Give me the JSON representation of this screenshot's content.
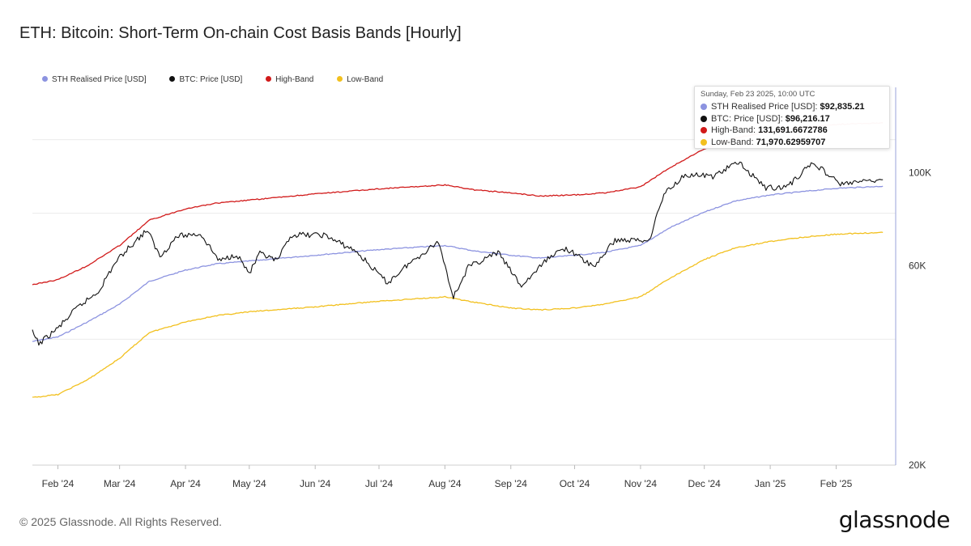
{
  "chart_data": {
    "type": "line",
    "title": "ETH: Bitcoin: Short-Term On-chain Cost Basis Bands [Hourly]",
    "y_scale": "log",
    "ylim": [
      20000,
      160000
    ],
    "yticks": [
      {
        "value": 20000,
        "label": "20K"
      },
      {
        "value": 60000,
        "label": "60K"
      },
      {
        "value": 100000,
        "label": "100K"
      }
    ],
    "xlim": [
      "2024-01-20",
      "2025-03-01"
    ],
    "xticks": [
      {
        "date": "2024-02-01",
        "label": "Feb '24"
      },
      {
        "date": "2024-03-01",
        "label": "Mar '24"
      },
      {
        "date": "2024-04-01",
        "label": "Apr '24"
      },
      {
        "date": "2024-05-01",
        "label": "May '24"
      },
      {
        "date": "2024-06-01",
        "label": "Jun '24"
      },
      {
        "date": "2024-07-01",
        "label": "Jul '24"
      },
      {
        "date": "2024-08-01",
        "label": "Aug '24"
      },
      {
        "date": "2024-09-01",
        "label": "Sep '24"
      },
      {
        "date": "2024-10-01",
        "label": "Oct '24"
      },
      {
        "date": "2024-11-01",
        "label": "Nov '24"
      },
      {
        "date": "2024-12-01",
        "label": "Dec '24"
      },
      {
        "date": "2025-01-01",
        "label": "Jan '25"
      },
      {
        "date": "2025-02-01",
        "label": "Feb '25"
      }
    ],
    "grid": true,
    "legend_position": "top-left",
    "series": [
      {
        "name": "STH Realised Price [USD]",
        "color": "#8c93e0",
        "points": [
          [
            "2024-01-20",
            39500
          ],
          [
            "2024-02-01",
            40500
          ],
          [
            "2024-02-15",
            44000
          ],
          [
            "2024-03-01",
            48500
          ],
          [
            "2024-03-15",
            55000
          ],
          [
            "2024-04-01",
            58500
          ],
          [
            "2024-04-15",
            60500
          ],
          [
            "2024-05-01",
            61500
          ],
          [
            "2024-06-01",
            63500
          ],
          [
            "2024-07-01",
            65500
          ],
          [
            "2024-08-01",
            67000
          ],
          [
            "2024-08-15",
            65000
          ],
          [
            "2024-09-01",
            63500
          ],
          [
            "2024-09-15",
            62500
          ],
          [
            "2024-10-01",
            63500
          ],
          [
            "2024-10-15",
            64500
          ],
          [
            "2024-11-01",
            67000
          ],
          [
            "2024-11-15",
            74000
          ],
          [
            "2024-12-01",
            80500
          ],
          [
            "2024-12-15",
            85500
          ],
          [
            "2025-01-01",
            88500
          ],
          [
            "2025-01-15",
            90000
          ],
          [
            "2025-02-01",
            91800
          ],
          [
            "2025-02-23",
            92835.21
          ]
        ]
      },
      {
        "name": "BTC: Price [USD]",
        "color": "#111111",
        "points": [
          [
            "2024-01-20",
            41500
          ],
          [
            "2024-01-23",
            39000
          ],
          [
            "2024-02-01",
            42500
          ],
          [
            "2024-02-10",
            47500
          ],
          [
            "2024-02-20",
            52000
          ],
          [
            "2024-02-28",
            61000
          ],
          [
            "2024-03-05",
            66000
          ],
          [
            "2024-03-14",
            73000
          ],
          [
            "2024-03-20",
            63000
          ],
          [
            "2024-03-28",
            70500
          ],
          [
            "2024-04-08",
            71500
          ],
          [
            "2024-04-17",
            61500
          ],
          [
            "2024-04-25",
            64000
          ],
          [
            "2024-05-01",
            57500
          ],
          [
            "2024-05-06",
            64000
          ],
          [
            "2024-05-14",
            61500
          ],
          [
            "2024-05-21",
            71000
          ],
          [
            "2024-06-05",
            71000
          ],
          [
            "2024-06-20",
            65000
          ],
          [
            "2024-07-05",
            54500
          ],
          [
            "2024-07-14",
            60000
          ],
          [
            "2024-07-29",
            68500
          ],
          [
            "2024-08-05",
            50500
          ],
          [
            "2024-08-12",
            59500
          ],
          [
            "2024-08-26",
            64500
          ],
          [
            "2024-09-06",
            53500
          ],
          [
            "2024-09-20",
            63500
          ],
          [
            "2024-09-27",
            66000
          ],
          [
            "2024-10-10",
            59500
          ],
          [
            "2024-10-20",
            69000
          ],
          [
            "2024-11-05",
            69000
          ],
          [
            "2024-11-12",
            89000
          ],
          [
            "2024-11-22",
            99000
          ],
          [
            "2024-12-05",
            98000
          ],
          [
            "2024-12-17",
            106000
          ],
          [
            "2024-12-30",
            92000
          ],
          [
            "2025-01-09",
            92500
          ],
          [
            "2025-01-21",
            106000
          ],
          [
            "2025-02-03",
            94000
          ],
          [
            "2025-02-23",
            96216.17
          ]
        ]
      },
      {
        "name": "High-Band",
        "color": "#d11a1a",
        "points": [
          [
            "2024-01-20",
            54000
          ],
          [
            "2024-02-01",
            55500
          ],
          [
            "2024-02-15",
            60000
          ],
          [
            "2024-03-01",
            67000
          ],
          [
            "2024-03-15",
            77000
          ],
          [
            "2024-04-01",
            82000
          ],
          [
            "2024-04-15",
            84500
          ],
          [
            "2024-05-01",
            86000
          ],
          [
            "2024-06-01",
            89000
          ],
          [
            "2024-07-01",
            91500
          ],
          [
            "2024-08-01",
            93500
          ],
          [
            "2024-08-15",
            91000
          ],
          [
            "2024-09-01",
            89500
          ],
          [
            "2024-09-15",
            88000
          ],
          [
            "2024-10-01",
            88500
          ],
          [
            "2024-10-15",
            89500
          ],
          [
            "2024-11-01",
            92500
          ],
          [
            "2024-11-15",
            103000
          ],
          [
            "2024-12-01",
            114000
          ],
          [
            "2024-12-15",
            121000
          ],
          [
            "2025-01-01",
            125500
          ],
          [
            "2025-01-15",
            128000
          ],
          [
            "2025-02-01",
            130500
          ],
          [
            "2025-02-23",
            131691.6672786
          ]
        ]
      },
      {
        "name": "Low-Band",
        "color": "#f2c01e",
        "points": [
          [
            "2024-01-20",
            29000
          ],
          [
            "2024-02-01",
            29500
          ],
          [
            "2024-02-15",
            32000
          ],
          [
            "2024-03-01",
            36000
          ],
          [
            "2024-03-15",
            41500
          ],
          [
            "2024-04-01",
            44000
          ],
          [
            "2024-04-15",
            45500
          ],
          [
            "2024-05-01",
            46500
          ],
          [
            "2024-06-01",
            47800
          ],
          [
            "2024-07-01",
            49300
          ],
          [
            "2024-08-01",
            50500
          ],
          [
            "2024-08-15",
            49000
          ],
          [
            "2024-09-01",
            47500
          ],
          [
            "2024-09-15",
            47000
          ],
          [
            "2024-10-01",
            47500
          ],
          [
            "2024-10-15",
            48500
          ],
          [
            "2024-11-01",
            50500
          ],
          [
            "2024-11-15",
            56000
          ],
          [
            "2024-12-01",
            62000
          ],
          [
            "2024-12-15",
            66000
          ],
          [
            "2025-01-01",
            68500
          ],
          [
            "2025-01-15",
            70000
          ],
          [
            "2025-02-01",
            71300
          ],
          [
            "2025-02-23",
            71970.62959707
          ]
        ]
      }
    ]
  },
  "legend": [
    {
      "label": "STH Realised Price [USD]",
      "color": "#8c93e0"
    },
    {
      "label": "BTC: Price [USD]",
      "color": "#111111"
    },
    {
      "label": "High-Band",
      "color": "#d11a1a"
    },
    {
      "label": "Low-Band",
      "color": "#f2c01e"
    }
  ],
  "tooltip": {
    "date": "Sunday, Feb 23 2025, 10:00 UTC",
    "rows": [
      {
        "label": "STH Realised Price [USD]",
        "value": "$92,835.21",
        "color": "#8c93e0"
      },
      {
        "label": "BTC: Price [USD]",
        "value": "$96,216.17",
        "color": "#111111"
      },
      {
        "label": "High-Band",
        "value": "131,691.6672786",
        "color": "#d11a1a"
      },
      {
        "label": "Low-Band",
        "value": "71,970.62959707",
        "color": "#f2c01e"
      }
    ]
  },
  "footer": {
    "copyright": "© 2025 Glassnode. All Rights Reserved.",
    "logo": "glassnode"
  }
}
